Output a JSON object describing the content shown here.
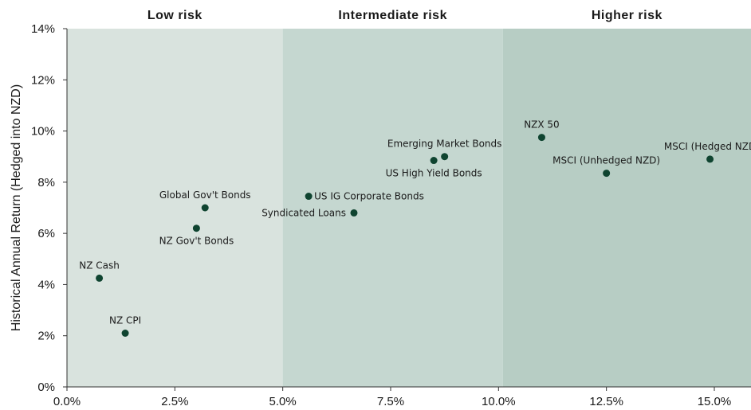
{
  "chart_data": {
    "type": "scatter",
    "title": "",
    "xlabel": "",
    "ylabel": "Historical Annual Return (Hedged into NZD)",
    "xlim": [
      0,
      15.85
    ],
    "ylim": [
      0,
      14
    ],
    "x_ticks": [
      "0.0%",
      "2.5%",
      "5.0%",
      "7.5%",
      "10.0%",
      "12.5%",
      "15.0%"
    ],
    "x_tick_values": [
      0,
      2.5,
      5,
      7.5,
      10,
      12.5,
      15
    ],
    "y_ticks": [
      "0%",
      "2%",
      "4%",
      "6%",
      "8%",
      "10%",
      "12%",
      "14%"
    ],
    "y_tick_values": [
      0,
      2,
      4,
      6,
      8,
      10,
      12,
      14
    ],
    "grid": false,
    "legend": "none",
    "bands": [
      {
        "label": "Low risk",
        "from": 0,
        "to": 5.0,
        "color": "#d9e3de"
      },
      {
        "label": "Intermediate risk",
        "from": 5.0,
        "to": 10.1,
        "color": "#c5d7d0"
      },
      {
        "label": "Higher risk",
        "from": 10.1,
        "to": 15.85,
        "color": "#b7cdc4"
      }
    ],
    "point_color": "#0f4430",
    "points": [
      {
        "label": "NZ Cash",
        "x": 0.75,
        "y": 4.25,
        "label_pos": "above"
      },
      {
        "label": "NZ CPI",
        "x": 1.35,
        "y": 2.1,
        "label_pos": "above"
      },
      {
        "label": "Global Gov't Bonds",
        "x": 3.2,
        "y": 7.0,
        "label_pos": "above"
      },
      {
        "label": "NZ Gov't Bonds",
        "x": 3.0,
        "y": 6.2,
        "label_pos": "below"
      },
      {
        "label": "US IG Corporate Bonds",
        "x": 5.6,
        "y": 7.45,
        "label_pos": "right"
      },
      {
        "label": "Syndicated Loans",
        "x": 6.65,
        "y": 6.8,
        "label_pos": "left"
      },
      {
        "label": "Emerging Market Bonds",
        "x": 8.75,
        "y": 9.0,
        "label_pos": "above"
      },
      {
        "label": "US High Yield Bonds",
        "x": 8.5,
        "y": 8.85,
        "label_pos": "below"
      },
      {
        "label": "NZX 50",
        "x": 11.0,
        "y": 9.75,
        "label_pos": "above"
      },
      {
        "label": "MSCI (Unhedged NZD)",
        "x": 12.5,
        "y": 8.35,
        "label_pos": "above"
      },
      {
        "label": "MSCI (Hedged NZD",
        "x": 14.9,
        "y": 8.9,
        "label_pos": "above"
      }
    ]
  }
}
